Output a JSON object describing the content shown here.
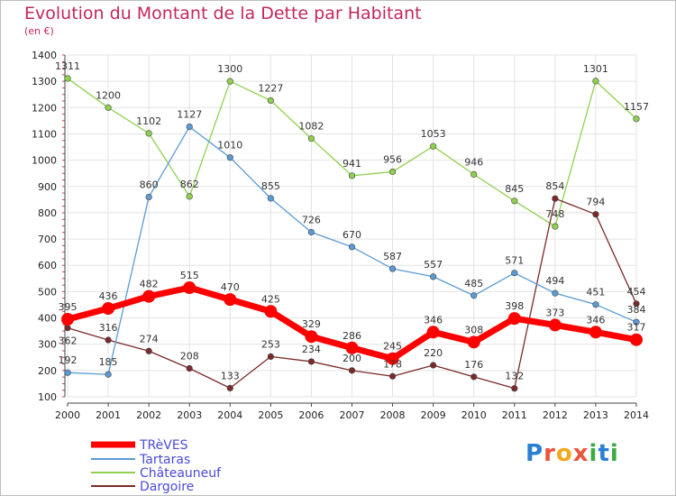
{
  "header": {
    "title": "Evolution du Montant de la Dette par Habitant",
    "unit": "(en €)"
  },
  "brand": {
    "letters": [
      "P",
      "r",
      "o",
      "x",
      "i",
      "t",
      "i"
    ],
    "colors": [
      "#2a7fd4",
      "#e8553d",
      "#f2a81d",
      "#e8553d",
      "#3daa46",
      "#2a7fd4",
      "#3daa46"
    ]
  },
  "chart_data": {
    "type": "line",
    "title": "Evolution du Montant de la Dette par Habitant",
    "ylabel": "(en €)",
    "xlabel": "",
    "x": [
      "2000",
      "2001",
      "2002",
      "2003",
      "2004",
      "2005",
      "2006",
      "2007",
      "2008",
      "2009",
      "2010",
      "2011",
      "2012",
      "2013",
      "2014"
    ],
    "ylim": [
      100,
      1400
    ],
    "yticks": [
      "100",
      "200",
      "300",
      "400",
      "500",
      "600",
      "700",
      "800",
      "900",
      "1000",
      "1100",
      "1200",
      "1300",
      "1400"
    ],
    "grid": true,
    "legend_position": "bottom-left",
    "series": [
      {
        "name": "TRèVES",
        "color": "#ff0000",
        "values": [
          395,
          436,
          482,
          515,
          470,
          425,
          329,
          286,
          245,
          346,
          308,
          398,
          373,
          346,
          317
        ]
      },
      {
        "name": "Tartaras",
        "color": "#5b9bd5",
        "values": [
          192,
          185,
          860,
          1127,
          1010,
          855,
          726,
          670,
          587,
          557,
          485,
          571,
          494,
          451,
          384
        ]
      },
      {
        "name": "Châteauneuf",
        "color": "#8fd14f",
        "values": [
          1311,
          1200,
          1102,
          862,
          1300,
          1227,
          1082,
          941,
          956,
          1053,
          946,
          845,
          748,
          1301,
          1157
        ]
      },
      {
        "name": "Dargoire",
        "color": "#7a2a2a",
        "values": [
          362,
          316,
          274,
          208,
          133,
          253,
          234,
          200,
          178,
          220,
          176,
          132,
          854,
          794,
          454
        ]
      }
    ]
  }
}
